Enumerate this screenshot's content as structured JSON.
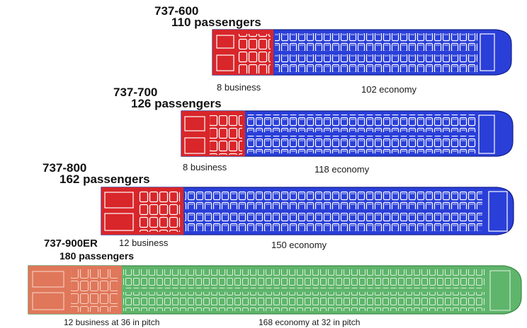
{
  "aircraft": [
    {
      "model": "737-600",
      "passengers_label": "110 passengers",
      "business_label": "8 business",
      "economy_label": "102 economy",
      "business_color": "#d8262a",
      "economy_color": "#2a3fd8"
    },
    {
      "model": "737-700",
      "passengers_label": "126 passengers",
      "business_label": "8 business",
      "economy_label": "118 economy",
      "business_color": "#d8262a",
      "economy_color": "#2a3fd8"
    },
    {
      "model": "737-800",
      "passengers_label": "162 passengers",
      "business_label": "12 business",
      "economy_label": "150 economy",
      "business_color": "#d8262a",
      "economy_color": "#2a3fd8"
    },
    {
      "model": "737-900ER",
      "passengers_label": "180 passengers",
      "business_label": "12 business at 36 in pitch",
      "economy_label": "168 economy at 32 in pitch",
      "business_color": "#e0775a",
      "economy_color": "#5fb56b"
    }
  ]
}
